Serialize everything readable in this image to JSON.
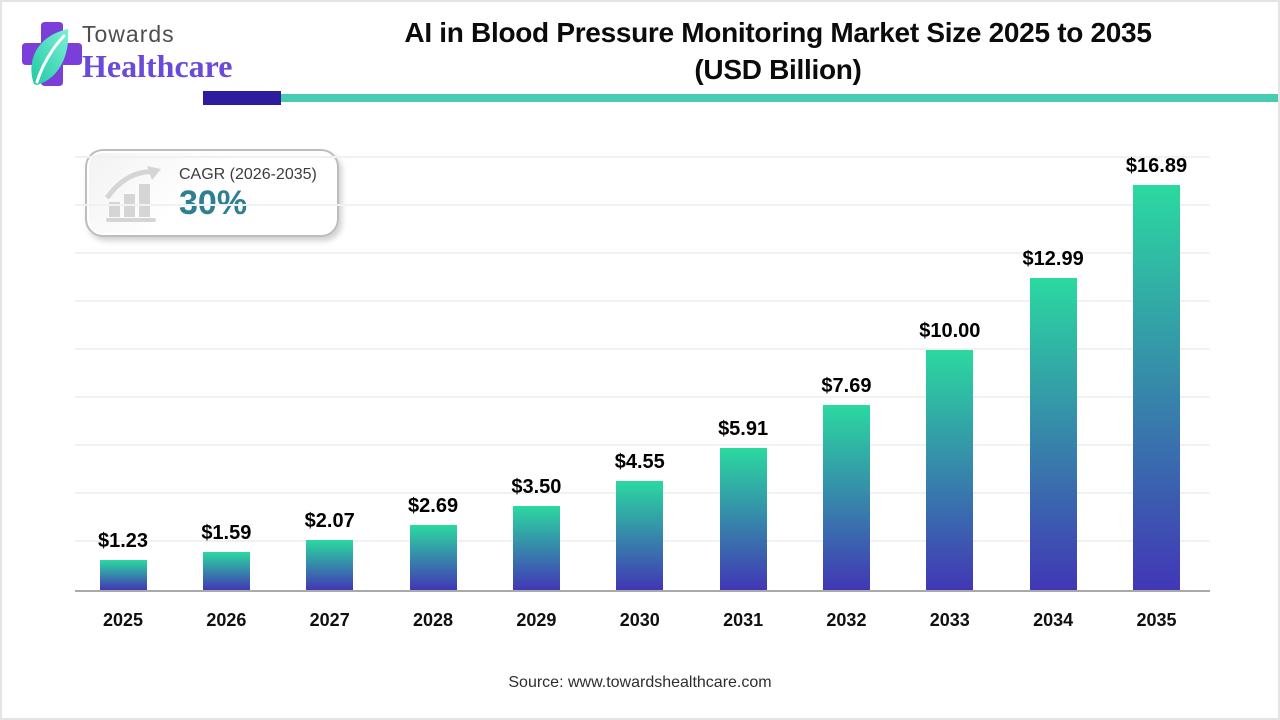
{
  "logo": {
    "line1": "Towards",
    "line2": "Healthcare"
  },
  "header": {
    "title_line1": "AI in Blood Pressure Monitoring Market Size 2025 to 2035",
    "title_line2": "(USD Billion)"
  },
  "cagr_badge": {
    "label": "CAGR (2026-2035)",
    "value": "30%"
  },
  "source": "Source: www.towardshealthcare.com",
  "colors": {
    "bar_top": "#2bd9a0",
    "bar_bottom": "#4137b5",
    "accent_teal": "#47ccb4",
    "accent_indigo": "#2d1d9e",
    "cagr_value": "#2e8090",
    "logo_purple": "#7c3ed8",
    "leaf_teal": "#2fd8b0",
    "baseline_gray": "#a9a9a9",
    "gridline_gray": "#f1f1f1"
  },
  "chart_data": {
    "type": "bar",
    "title": "AI in Blood Pressure Monitoring Market Size 2025 to 2035 (USD Billion)",
    "xlabel": "",
    "ylabel": "",
    "categories": [
      "2025",
      "2026",
      "2027",
      "2028",
      "2029",
      "2030",
      "2031",
      "2032",
      "2033",
      "2034",
      "2035"
    ],
    "values": [
      1.23,
      1.59,
      2.07,
      2.69,
      3.5,
      4.55,
      5.91,
      7.69,
      10.0,
      12.99,
      16.89
    ],
    "value_labels": [
      "$1.23",
      "$1.59",
      "$2.07",
      "$2.69",
      "$3.50",
      "$4.55",
      "$5.91",
      "$7.69",
      "$10.00",
      "$12.99",
      "$16.89"
    ],
    "ylim": [
      0,
      18
    ],
    "grid_step": 2,
    "grid": "horizontal, faint, no y tick labels",
    "legend": "none",
    "bar_gradient": [
      "#2bd9a0",
      "#4137b5"
    ]
  }
}
